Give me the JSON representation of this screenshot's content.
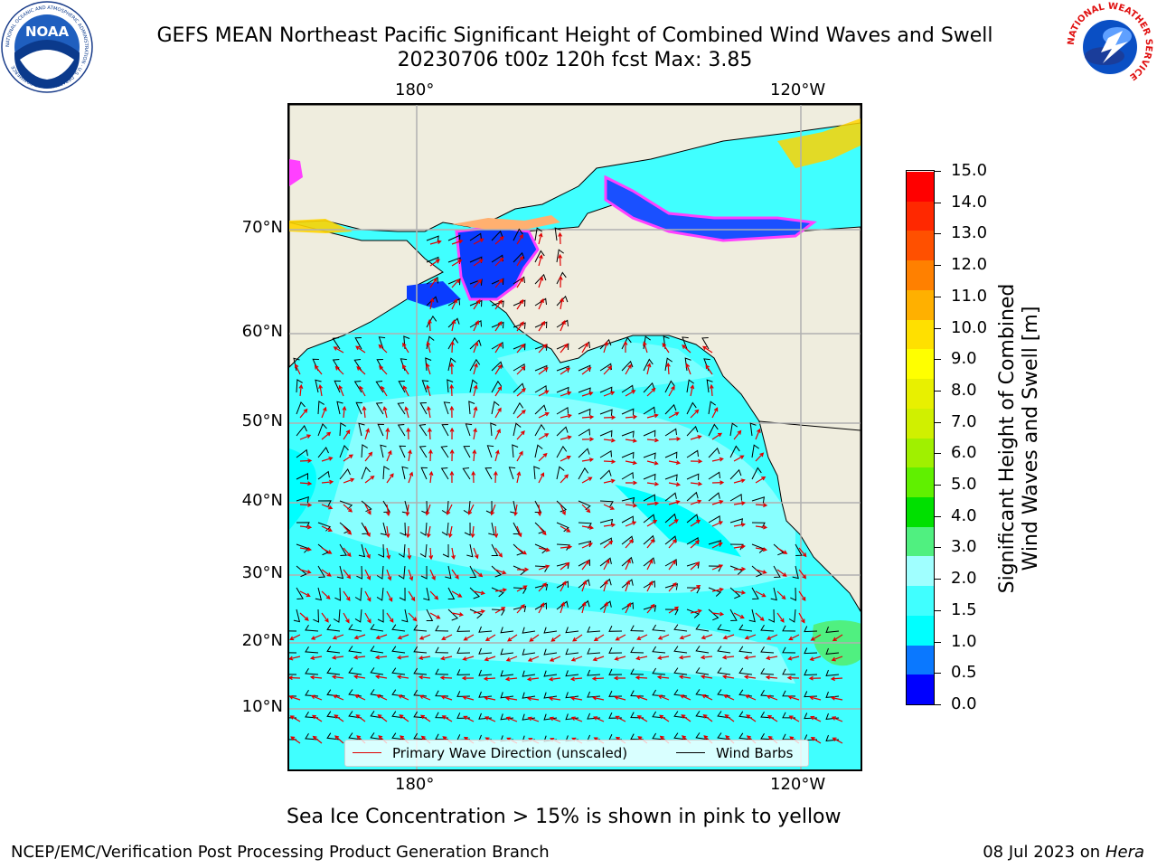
{
  "header": {
    "title_line1": "GEFS MEAN Northeast Pacific Significant Height of Combined Wind Waves and Swell",
    "title_line2": "20230706 t00z 120h fcst   Max: 3.85"
  },
  "logos": {
    "left": {
      "icon": "noaa-logo-icon",
      "text": "NOAA",
      "ring_text": "NATIONAL OCEANIC AND ATMOSPHERIC ADMINISTRATION · U.S. DEPARTMENT OF COMMERCE"
    },
    "right": {
      "icon": "nws-logo-icon",
      "ring_text": "NATIONAL WEATHER SERVICE"
    }
  },
  "map": {
    "lon_labels_top": [
      "180°",
      "120°W"
    ],
    "lon_labels_bottom": [
      "180°",
      "120°W"
    ],
    "lat_labels": [
      "70°N",
      "60°N",
      "50°N",
      "40°N",
      "30°N",
      "20°N",
      "10°N"
    ],
    "colors": {
      "land": "#efedde",
      "grid": "#b0b0b0",
      "wave_arrow": "#e00000",
      "wind_barb": "#000000",
      "ice_pink": "#ff40ff",
      "ice_yellow": "#ffd400"
    },
    "legend": {
      "primary_wave": "Primary Wave Direction (unscaled)",
      "wind_barbs": "Wind Barbs"
    }
  },
  "colorbar": {
    "title_line1": "Significant Height of Combined",
    "title_line2": "Wind Waves and Swell [m]",
    "ticks": [
      "15.0",
      "14.0",
      "13.0",
      "12.0",
      "11.0",
      "10.0",
      "9.0",
      "8.0",
      "7.0",
      "6.0",
      "5.0",
      "4.0",
      "3.0",
      "2.0",
      "1.5",
      "1.0",
      "0.5",
      "0.0"
    ],
    "segment_colors": [
      "#0000ff",
      "#0a78ff",
      "#00ffff",
      "#40ffff",
      "#a0ffff",
      "#50f080",
      "#00e000",
      "#60f000",
      "#a0f000",
      "#d0f000",
      "#e8f000",
      "#ffff00",
      "#ffe000",
      "#ffb000",
      "#ff8000",
      "#ff5000",
      "#ff2800",
      "#ff0000"
    ]
  },
  "footer": {
    "note": "Sea Ice Concentration > 15% is shown in pink to yellow",
    "left_credit": "NCEP/EMC/Verification Post Processing Product Generation Branch",
    "date": "08 Jul 2023 on ",
    "host": "Hera"
  }
}
